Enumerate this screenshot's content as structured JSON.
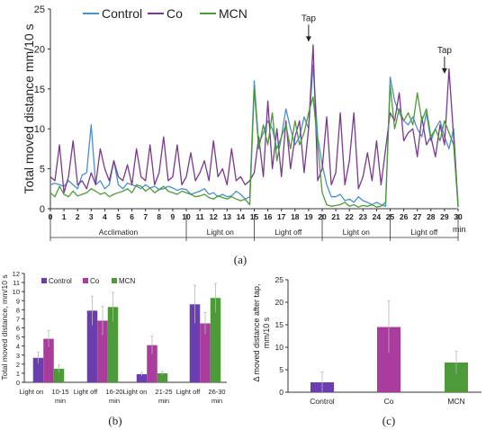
{
  "chart_data": [
    {
      "id": "a",
      "type": "line",
      "panel_label": "(a)",
      "ylabel": "Total moved distance mm/10 s",
      "xunit": "min",
      "xlim": [
        0,
        30
      ],
      "ylim": [
        0,
        25
      ],
      "yticks": [
        0,
        5,
        10,
        15,
        20,
        25
      ],
      "xticks": [
        0,
        1,
        2,
        3,
        4,
        5,
        6,
        7,
        8,
        9,
        10,
        11,
        12,
        13,
        14,
        15,
        16,
        17,
        18,
        19,
        20,
        21,
        22,
        23,
        24,
        25,
        26,
        27,
        28,
        29,
        30
      ],
      "phases": [
        {
          "label": "Acclimation",
          "start": 0,
          "end": 10
        },
        {
          "label": "Light on",
          "start": 10,
          "end": 15
        },
        {
          "label": "Light off",
          "start": 15,
          "end": 20
        },
        {
          "label": "Light on",
          "start": 20,
          "end": 25
        },
        {
          "label": "Light off",
          "start": 25,
          "end": 30
        }
      ],
      "annotations": [
        {
          "text": "Tap",
          "x": 19,
          "y": 23.5
        },
        {
          "text": "Tap",
          "x": 29,
          "y": 19.5
        }
      ],
      "series": [
        {
          "name": "Control",
          "color": "#4a90c9",
          "values": [
            3.0,
            3.2,
            3.0,
            2.8,
            3.5,
            3.0,
            2.5,
            4.2,
            4.5,
            10.5,
            3.0,
            3.5,
            2.5,
            3.0,
            6.0,
            3.0,
            2.5,
            3.2,
            3.0,
            2.8,
            2.5,
            3.0,
            2.6,
            2.8,
            2.4,
            2.5,
            2.8,
            2.6,
            2.3,
            2.5,
            2.4,
            1.8,
            2.0,
            2.2,
            2.5,
            1.8,
            2.0,
            1.5,
            1.8,
            1.5,
            1.6,
            2.2,
            1.8,
            1.2,
            1.5,
            16.0,
            8.0,
            9.5,
            11.0,
            10.0,
            7.5,
            9.0,
            12.5,
            10.0,
            8.0,
            9.0,
            11.5,
            10.0,
            18.0,
            9.0,
            5.5,
            3.0,
            1.5,
            1.5,
            1.8,
            1.0,
            1.2,
            0.8,
            1.5,
            1.0,
            0.8,
            0.5,
            0.8,
            0.5,
            0.3,
            16.5,
            13.5,
            12.0,
            11.0,
            10.5,
            11.5,
            10.0,
            9.0,
            12.0,
            8.5,
            10.0,
            11.0,
            9.0,
            7.5,
            10.0,
            0.2
          ]
        },
        {
          "name": "Co",
          "color": "#7a3a8c",
          "values": [
            4.0,
            3.5,
            8.0,
            2.0,
            4.0,
            8.5,
            3.0,
            3.5,
            2.5,
            4.5,
            3.0,
            7.5,
            5.0,
            3.5,
            6.0,
            4.0,
            3.5,
            5.5,
            3.0,
            7.5,
            4.0,
            3.5,
            8.0,
            3.0,
            4.5,
            9.0,
            3.5,
            4.0,
            8.0,
            3.0,
            4.0,
            7.0,
            3.5,
            4.5,
            6.0,
            3.5,
            8.5,
            4.0,
            5.0,
            3.0,
            7.5,
            3.5,
            4.0,
            3.0,
            3.5,
            4.5,
            9.0,
            4.0,
            13.5,
            5.0,
            10.0,
            4.0,
            11.0,
            5.0,
            9.0,
            11.0,
            4.5,
            10.0,
            20.5,
            3.5,
            5.0,
            11.5,
            3.0,
            4.5,
            12.0,
            3.0,
            6.0,
            12.0,
            2.5,
            4.0,
            7.0,
            3.5,
            8.5,
            3.0,
            7.5,
            12.0,
            11.0,
            14.5,
            8.5,
            9.5,
            10.0,
            6.5,
            11.5,
            8.0,
            9.0,
            6.5,
            10.5,
            8.0,
            17.5,
            9.0,
            0.5
          ]
        },
        {
          "name": "MCN",
          "color": "#4d9a3a",
          "values": [
            2.0,
            1.5,
            2.8,
            1.8,
            1.5,
            2.2,
            1.6,
            1.8,
            2.0,
            2.5,
            2.2,
            1.8,
            2.0,
            1.5,
            1.8,
            2.0,
            2.2,
            2.5,
            2.0,
            3.0,
            2.8,
            2.2,
            2.6,
            2.0,
            2.4,
            2.8,
            2.2,
            2.0,
            1.8,
            2.2,
            2.0,
            1.8,
            1.5,
            1.6,
            1.8,
            1.4,
            1.2,
            1.6,
            1.4,
            1.2,
            1.5,
            1.2,
            1.0,
            1.2,
            0.5,
            15.0,
            7.5,
            10.5,
            8.0,
            12.0,
            6.0,
            9.0,
            10.5,
            7.5,
            11.0,
            8.0,
            9.5,
            12.0,
            14.0,
            8.0,
            2.0,
            0.5,
            0.3,
            0.4,
            0.5,
            0.8,
            0.3,
            0.5,
            0.2,
            0.4,
            0.3,
            0.5,
            0.2,
            0.3,
            0.8,
            15.5,
            10.0,
            12.5,
            11.0,
            12.0,
            10.5,
            14.5,
            11.0,
            12.5,
            9.0,
            10.0,
            8.5,
            11.0,
            9.5,
            8.0,
            0.2
          ]
        }
      ]
    },
    {
      "id": "b",
      "type": "bar",
      "panel_label": "(b)",
      "ylabel": "Total moved distance, mm/10 s",
      "ylim": [
        0,
        12
      ],
      "yticks": [
        0,
        1,
        2,
        3,
        4,
        5,
        6,
        7,
        8,
        9,
        10,
        11,
        12
      ],
      "groups": [
        {
          "phase": "Light on",
          "range": "10-15",
          "unit": "min"
        },
        {
          "phase": "Light off",
          "range": "16-20",
          "unit": "min"
        },
        {
          "phase": "Light on",
          "range": "21-25",
          "unit": "min"
        },
        {
          "phase": "Light off",
          "range": "26-30",
          "unit": "min"
        }
      ],
      "series": [
        {
          "name": "Control",
          "color": "#6a3db0",
          "values": [
            2.7,
            7.9,
            0.9,
            8.6
          ],
          "errors": [
            0.6,
            1.6,
            0.2,
            2.1
          ]
        },
        {
          "name": "Co",
          "color": "#a93c9c",
          "values": [
            4.8,
            6.8,
            4.1,
            6.5
          ],
          "errors": [
            0.9,
            1.6,
            1.0,
            1.2
          ]
        },
        {
          "name": "MCN",
          "color": "#4d9a3a",
          "values": [
            1.5,
            8.3,
            1.0,
            9.3
          ],
          "errors": [
            0.4,
            1.6,
            0.2,
            1.6
          ]
        }
      ]
    },
    {
      "id": "c",
      "type": "bar",
      "panel_label": "(c)",
      "ylabel": "Δ moved distance after tap, mm/10 s",
      "ylim": [
        0,
        25
      ],
      "yticks": [
        0,
        5,
        10,
        15,
        20,
        25
      ],
      "categories": [
        "Control",
        "Co",
        "MCN"
      ],
      "values": [
        2.2,
        14.5,
        6.6
      ],
      "errors": [
        2.3,
        5.8,
        2.5
      ],
      "colors": [
        "#6a3db0",
        "#a93c9c",
        "#4d9a3a"
      ]
    }
  ]
}
